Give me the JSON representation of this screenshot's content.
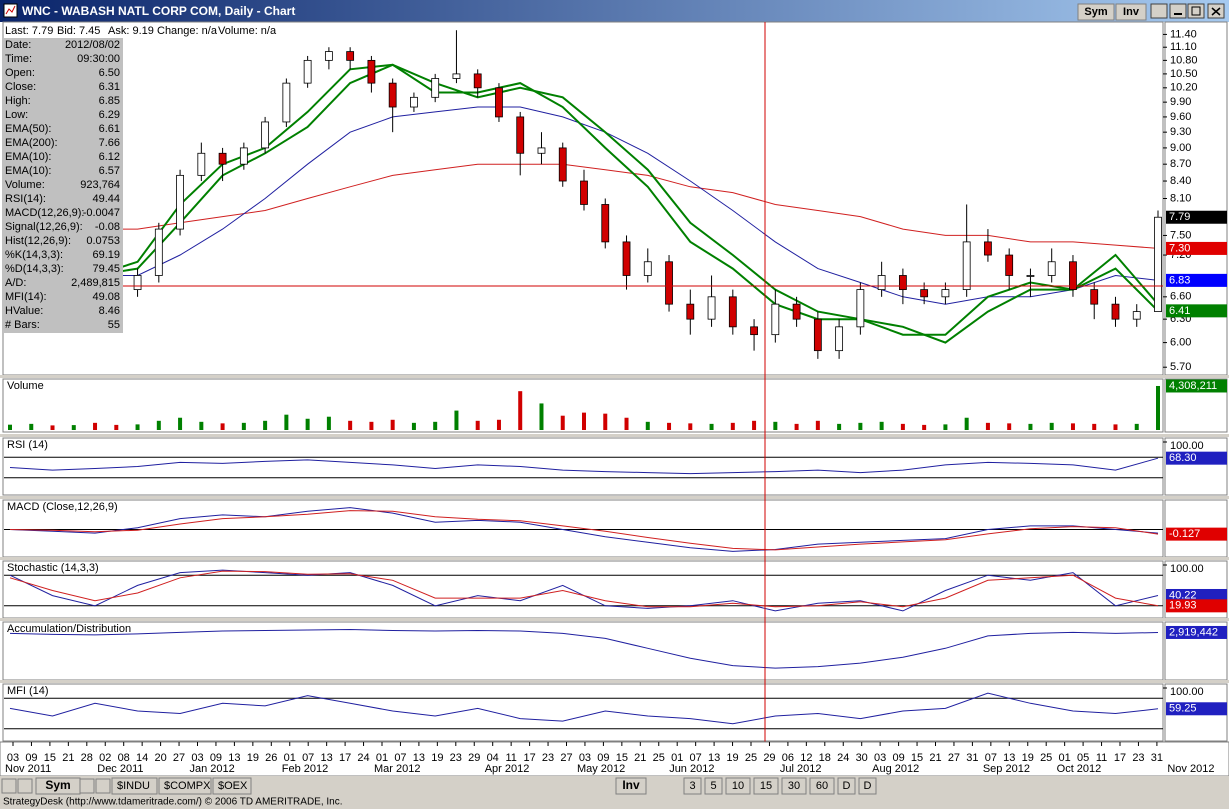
{
  "window": {
    "title": "WNC - WABASH NATL CORP COM, Daily - Chart",
    "buttons": [
      "Sym",
      "Inv"
    ]
  },
  "quote": [
    "Last: 7.79",
    "Bid: 7.45",
    "Ask: 9.19",
    "Change: n/a",
    "Volume: n/a"
  ],
  "info": [
    {
      "label": "Date:",
      "value": "2012/08/02",
      "color": "#000000"
    },
    {
      "label": "Time:",
      "value": "09:30:00",
      "color": "#000000"
    },
    {
      "label": "Open:",
      "value": "6.50",
      "color": "#000000"
    },
    {
      "label": "Close:",
      "value": "6.31",
      "color": "#000000"
    },
    {
      "label": "High:",
      "value": "6.85",
      "color": "#000000"
    },
    {
      "label": "Low:",
      "value": "6.29",
      "color": "#000000"
    },
    {
      "label": "EMA(50):",
      "value": "6.61",
      "color": "#0000c0"
    },
    {
      "label": "EMA(200):",
      "value": "7.66",
      "color": "#e00000"
    },
    {
      "label": "EMA(10):",
      "value": "6.12",
      "color": "#008000"
    },
    {
      "label": "EMA(10):",
      "value": "6.57",
      "color": "#008000"
    },
    {
      "label": "Volume:",
      "value": "923,764",
      "color": "#000000"
    },
    {
      "label": "RSI(14):",
      "value": "49.44",
      "color": "#0000c0"
    },
    {
      "label": "MACD(12,26,9):",
      "value": "-0.0047",
      "color": "#0000c0"
    },
    {
      "label": "Signal(12,26,9):",
      "value": "-0.08",
      "color": "#e00000"
    },
    {
      "label": "Hist(12,26,9):",
      "value": "0.0753",
      "color": "#e000e0"
    },
    {
      "label": "%K(14,3,3):",
      "value": "69.19",
      "color": "#0000c0"
    },
    {
      "label": "%D(14,3,3):",
      "value": "79.45",
      "color": "#e00000"
    },
    {
      "label": "A/D:",
      "value": "2,489,815",
      "color": "#0000c0"
    },
    {
      "label": "MFI(14):",
      "value": "49.08",
      "color": "#0000c0"
    },
    {
      "label": "HValue:",
      "value": "8.46",
      "color": "#000000"
    },
    {
      "label": "# Bars:",
      "value": "55",
      "color": "#000000"
    }
  ],
  "price": {
    "log": true,
    "ylim": [
      5.62,
      11.65
    ],
    "yticks": [
      {
        "value": 11.4,
        "label": "11.40"
      },
      {
        "value": 11.1,
        "label": "11.10"
      },
      {
        "value": 10.8,
        "label": "10.80"
      },
      {
        "value": 10.5,
        "label": "10.50"
      },
      {
        "value": 10.2,
        "label": "10.20"
      },
      {
        "value": 9.9,
        "label": "9.90"
      },
      {
        "value": 9.6,
        "label": "9.60"
      },
      {
        "value": 9.3,
        "label": "9.30"
      },
      {
        "value": 9,
        "label": "9.00"
      },
      {
        "value": 8.7,
        "label": "8.70"
      },
      {
        "value": 8.4,
        "label": "8.40"
      },
      {
        "value": 8.1,
        "label": "8.10"
      },
      {
        "value": 7.5,
        "label": "7.50"
      },
      {
        "value": 7.2,
        "label": "7.20"
      },
      {
        "value": 6.6,
        "label": "6.60"
      },
      {
        "value": 6.3,
        "label": "6.30"
      },
      {
        "value": 6,
        "label": "6.00"
      },
      {
        "value": 5.7,
        "label": "5.70"
      }
    ],
    "up_color": "#ffffff",
    "down_color": "#d00000",
    "candles": [
      [
        7.0,
        7.5,
        6.9,
        7.2
      ],
      [
        7.2,
        7.6,
        7.0,
        7.4
      ],
      [
        7.4,
        7.5,
        6.9,
        7.0
      ],
      [
        7.0,
        7.3,
        6.8,
        7.1
      ],
      [
        7.1,
        7.2,
        6.7,
        6.9
      ],
      [
        6.9,
        7.0,
        6.5,
        6.7
      ],
      [
        6.7,
        7.0,
        6.6,
        6.9
      ],
      [
        6.9,
        7.7,
        6.8,
        7.6
      ],
      [
        7.6,
        8.6,
        7.5,
        8.5
      ],
      [
        8.5,
        9.1,
        8.4,
        8.9
      ],
      [
        8.9,
        9.0,
        8.4,
        8.7
      ],
      [
        8.7,
        9.1,
        8.6,
        9.0
      ],
      [
        9.0,
        9.6,
        8.9,
        9.5
      ],
      [
        9.5,
        10.4,
        9.4,
        10.3
      ],
      [
        10.3,
        10.9,
        10.2,
        10.8
      ],
      [
        10.8,
        11.1,
        10.6,
        11.0
      ],
      [
        11.0,
        11.1,
        10.6,
        10.8
      ],
      [
        10.8,
        10.9,
        10.1,
        10.3
      ],
      [
        10.3,
        10.4,
        9.3,
        9.8
      ],
      [
        9.8,
        10.1,
        9.7,
        10.0
      ],
      [
        10.0,
        10.5,
        9.9,
        10.4
      ],
      [
        10.4,
        11.5,
        10.3,
        10.5
      ],
      [
        10.5,
        10.6,
        10.0,
        10.2
      ],
      [
        10.2,
        10.3,
        9.5,
        9.6
      ],
      [
        9.6,
        9.7,
        8.5,
        8.9
      ],
      [
        8.9,
        9.3,
        8.7,
        9.0
      ],
      [
        9.0,
        9.1,
        8.3,
        8.4
      ],
      [
        8.4,
        8.6,
        7.9,
        8.0
      ],
      [
        8.0,
        8.1,
        7.3,
        7.4
      ],
      [
        7.4,
        7.5,
        6.7,
        6.9
      ],
      [
        6.9,
        7.3,
        6.8,
        7.1
      ],
      [
        7.1,
        7.2,
        6.4,
        6.5
      ],
      [
        6.5,
        6.7,
        6.1,
        6.3
      ],
      [
        6.3,
        6.9,
        6.2,
        6.6
      ],
      [
        6.6,
        6.7,
        6.1,
        6.2
      ],
      [
        6.2,
        6.3,
        5.9,
        6.1
      ],
      [
        6.1,
        6.7,
        6.0,
        6.5
      ],
      [
        6.5,
        6.6,
        6.2,
        6.3
      ],
      [
        6.3,
        6.4,
        5.8,
        5.9
      ],
      [
        5.9,
        6.3,
        5.8,
        6.2
      ],
      [
        6.2,
        6.8,
        6.1,
        6.7
      ],
      [
        6.7,
        7.1,
        6.6,
        6.9
      ],
      [
        6.9,
        7.0,
        6.5,
        6.7
      ],
      [
        6.7,
        6.8,
        6.5,
        6.6
      ],
      [
        6.6,
        6.8,
        6.5,
        6.7
      ],
      [
        6.7,
        8.0,
        6.6,
        7.4
      ],
      [
        7.4,
        7.6,
        7.1,
        7.2
      ],
      [
        7.2,
        7.3,
        6.7,
        6.9
      ],
      [
        6.9,
        7.0,
        6.6,
        6.9
      ],
      [
        6.9,
        7.3,
        6.8,
        7.1
      ],
      [
        7.1,
        7.2,
        6.6,
        6.7
      ],
      [
        6.7,
        6.8,
        6.3,
        6.5
      ],
      [
        6.5,
        6.6,
        6.2,
        6.3
      ],
      [
        6.3,
        6.5,
        6.2,
        6.4
      ],
      [
        6.4,
        7.9,
        6.4,
        7.79
      ]
    ],
    "lines": [
      {
        "color": "#d02020",
        "values": [
          7.6,
          7.6,
          7.6,
          7.6,
          7.7,
          7.8,
          7.9,
          8.1,
          8.3,
          8.5,
          8.6,
          8.7,
          8.7,
          8.7,
          8.6,
          8.5,
          8.3,
          8.2,
          8.0,
          7.9,
          7.8,
          7.6,
          7.5,
          7.5,
          7.4,
          7.4,
          7.35,
          7.3
        ]
      },
      {
        "color": "#2020a0",
        "values": [
          7.0,
          7.0,
          6.9,
          6.9,
          7.2,
          7.6,
          8.1,
          8.7,
          9.3,
          9.6,
          9.7,
          9.8,
          9.8,
          9.6,
          9.3,
          8.9,
          8.4,
          7.9,
          7.4,
          7.0,
          6.8,
          6.6,
          6.5,
          6.6,
          6.6,
          6.7,
          6.9,
          6.83
        ]
      },
      {
        "color": "#008000",
        "values": [
          7.3,
          7.1,
          6.9,
          7.0,
          7.7,
          8.5,
          8.9,
          9.4,
          10.3,
          10.7,
          10.3,
          10.0,
          10.2,
          10.0,
          9.3,
          8.6,
          7.7,
          7.2,
          6.7,
          6.4,
          6.3,
          6.2,
          6.0,
          6.4,
          6.7,
          6.7,
          7.0,
          6.41
        ]
      },
      {
        "color": "#008000",
        "values": [
          7.2,
          7.0,
          6.9,
          7.1,
          8.0,
          8.7,
          9.0,
          9.7,
          10.6,
          10.7,
          10.1,
          10.1,
          10.3,
          9.8,
          9.0,
          8.3,
          7.4,
          7.0,
          6.5,
          6.3,
          6.3,
          6.1,
          6.1,
          6.6,
          6.8,
          6.7,
          7.2,
          6.5
        ]
      }
    ],
    "labels": [
      {
        "value": 7.79,
        "label": "7.79",
        "color": "#000000"
      },
      {
        "value": 7.3,
        "label": "7.30",
        "color": "#e00000"
      },
      {
        "value": 6.83,
        "label": "6.83",
        "color": "#0000ff"
      },
      {
        "value": 6.41,
        "label": "6.41",
        "color": "#008000"
      }
    ]
  },
  "panels": [
    {
      "title": "Volume",
      "ylim": [
        0,
        4600000
      ],
      "bars": [
        520000,
        600000,
        450000,
        480000,
        700000,
        500000,
        550000,
        900000,
        1200000,
        800000,
        650000,
        700000,
        900000,
        1500000,
        1100000,
        1300000,
        900000,
        800000,
        1000000,
        700000,
        800000,
        1900000,
        900000,
        1000000,
        3800000,
        2600000,
        1400000,
        1700000,
        1600000,
        1200000,
        800000,
        700000,
        650000,
        600000,
        700000,
        900000,
        800000,
        600000,
        900000,
        600000,
        700000,
        800000,
        600000,
        500000,
        550000,
        1200000,
        700000,
        650000,
        600000,
        700000,
        650000,
        600000,
        550000,
        600000,
        4308211
      ],
      "up_color": "#008000",
      "down_color": "#d00000",
      "labels": [
        {
          "value": 4308211,
          "label": "4,308,211",
          "color": "#008000"
        }
      ]
    },
    {
      "title": "RSI (14)",
      "ylim": [
        0,
        100
      ],
      "yticks": [
        {
          "value": 100,
          "label": "100.00"
        }
      ],
      "levels": [
        70,
        30
      ],
      "lines": [
        {
          "color": "#2020a0",
          "values": [
            50,
            45,
            48,
            52,
            60,
            58,
            62,
            65,
            60,
            55,
            48,
            55,
            52,
            45,
            42,
            40,
            38,
            40,
            42,
            45,
            40,
            45,
            55,
            60,
            58,
            55,
            45,
            68.3
          ]
        }
      ],
      "labels": [
        {
          "value": 68.3,
          "label": "68.30",
          "color": "#2020c0"
        }
      ]
    },
    {
      "title": "MACD (Close,12,26,9)",
      "ylim": [
        -0.7,
        0.7
      ],
      "levels": [
        0
      ],
      "lines": [
        {
          "color": "#2020a0",
          "values": [
            0,
            -0.05,
            -0.1,
            0.05,
            0.3,
            0.4,
            0.35,
            0.5,
            0.6,
            0.45,
            0.2,
            0.25,
            0.2,
            0.0,
            -0.2,
            -0.35,
            -0.5,
            -0.6,
            -0.55,
            -0.4,
            -0.35,
            -0.3,
            -0.25,
            0.0,
            0.1,
            0.1,
            0.0,
            -0.1
          ]
        },
        {
          "color": "#d02020",
          "values": [
            0,
            -0.02,
            -0.06,
            -0.02,
            0.15,
            0.3,
            0.35,
            0.42,
            0.52,
            0.5,
            0.35,
            0.28,
            0.24,
            0.1,
            -0.05,
            -0.22,
            -0.38,
            -0.52,
            -0.56,
            -0.48,
            -0.4,
            -0.34,
            -0.28,
            -0.12,
            0.02,
            0.08,
            0.05,
            -0.127
          ]
        }
      ],
      "labels": [
        {
          "value": -0.127,
          "label": "-0.127",
          "color": "#e00000"
        }
      ]
    },
    {
      "title": "Stochastic (14,3,3)",
      "ylim": [
        0,
        100
      ],
      "yticks": [
        {
          "value": 100,
          "label": "100.00"
        }
      ],
      "levels": [
        80,
        20
      ],
      "lines": [
        {
          "color": "#2020a0",
          "values": [
            80,
            40,
            20,
            60,
            85,
            90,
            85,
            80,
            85,
            60,
            20,
            40,
            30,
            60,
            20,
            15,
            20,
            30,
            10,
            25,
            30,
            10,
            50,
            80,
            70,
            85,
            20,
            40.22
          ]
        },
        {
          "color": "#d02020",
          "values": [
            75,
            50,
            30,
            45,
            75,
            88,
            87,
            82,
            83,
            70,
            35,
            35,
            35,
            50,
            30,
            18,
            18,
            25,
            18,
            20,
            28,
            18,
            35,
            70,
            75,
            80,
            35,
            19.93
          ]
        }
      ],
      "labels": [
        {
          "value": 40.22,
          "label": "40.22",
          "color": "#2020c0"
        },
        {
          "value": 19.93,
          "label": "19.93",
          "color": "#e00000"
        }
      ]
    },
    {
      "title": "Accumulation/Distribution",
      "ylim": [
        2000000,
        3050000
      ],
      "lines": [
        {
          "color": "#2020a0",
          "values": [
            2900000,
            2880000,
            2870000,
            2890000,
            2920000,
            2950000,
            2960000,
            2970000,
            2980000,
            2960000,
            2950000,
            2960000,
            2950000,
            2900000,
            2800000,
            2600000,
            2400000,
            2250000,
            2200000,
            2230000,
            2300000,
            2420000,
            2600000,
            2850000,
            2900000,
            2920000,
            2900000,
            2919442
          ]
        }
      ],
      "labels": [
        {
          "value": 2919442,
          "label": "2,919,442",
          "color": "#2020c0"
        }
      ]
    },
    {
      "title": "MFI (14)",
      "ylim": [
        0,
        100
      ],
      "yticks": [
        {
          "value": 100,
          "label": "100.00"
        }
      ],
      "levels": [
        80,
        20
      ],
      "lines": [
        {
          "color": "#2020a0",
          "values": [
            60,
            45,
            70,
            55,
            50,
            70,
            65,
            85,
            70,
            55,
            45,
            60,
            40,
            35,
            55,
            45,
            40,
            30,
            45,
            50,
            40,
            55,
            60,
            90,
            70,
            55,
            50,
            59.25
          ]
        }
      ],
      "labels": [
        {
          "value": 59.25,
          "label": "59.25",
          "color": "#2020c0"
        }
      ]
    }
  ],
  "x_axis": [
    {
      "month": "Nov 2011",
      "days": [
        "03",
        "09",
        "15",
        "21",
        "28"
      ]
    },
    {
      "month": "Dec 2011",
      "days": [
        "02",
        "08",
        "14",
        "20",
        "27"
      ]
    },
    {
      "month": "Jan 2012",
      "days": [
        "03",
        "09",
        "13",
        "19",
        "26"
      ]
    },
    {
      "month": "Feb 2012",
      "days": [
        "01",
        "07",
        "13",
        "17",
        "24"
      ]
    },
    {
      "month": "Mar 2012",
      "days": [
        "01",
        "07",
        "13",
        "19",
        "23",
        "29"
      ]
    },
    {
      "month": "Apr 2012",
      "days": [
        "04",
        "11",
        "17",
        "23",
        "27"
      ]
    },
    {
      "month": "May 2012",
      "days": [
        "03",
        "09",
        "15",
        "21",
        "25"
      ]
    },
    {
      "month": "Jun 2012",
      "days": [
        "01",
        "07",
        "13",
        "19",
        "25",
        "29"
      ]
    },
    {
      "month": "Jul 2012",
      "days": [
        "06",
        "12",
        "18",
        "24",
        "30"
      ]
    },
    {
      "month": "Aug 2012",
      "days": [
        "03",
        "09",
        "15",
        "21",
        "27",
        "31"
      ]
    },
    {
      "month": "Sep 2012",
      "days": [
        "07",
        "13",
        "19",
        "25"
      ]
    },
    {
      "month": "Oct 2012",
      "days": [
        "01",
        "05",
        "11",
        "17",
        "23",
        "31"
      ]
    },
    {
      "month": "Nov 2012",
      "days": []
    }
  ],
  "tabs": {
    "left_button": "Sym",
    "left": [
      "$INDU",
      "$COMPX",
      "$OEX"
    ],
    "right_button": "Inv",
    "right": [
      "3",
      "5",
      "10",
      "15",
      "30",
      "60",
      "D",
      "D"
    ]
  },
  "status": "StrategyDesk (http://www.tdameritrade.com/) © 2006 TD AMERITRADE, Inc."
}
